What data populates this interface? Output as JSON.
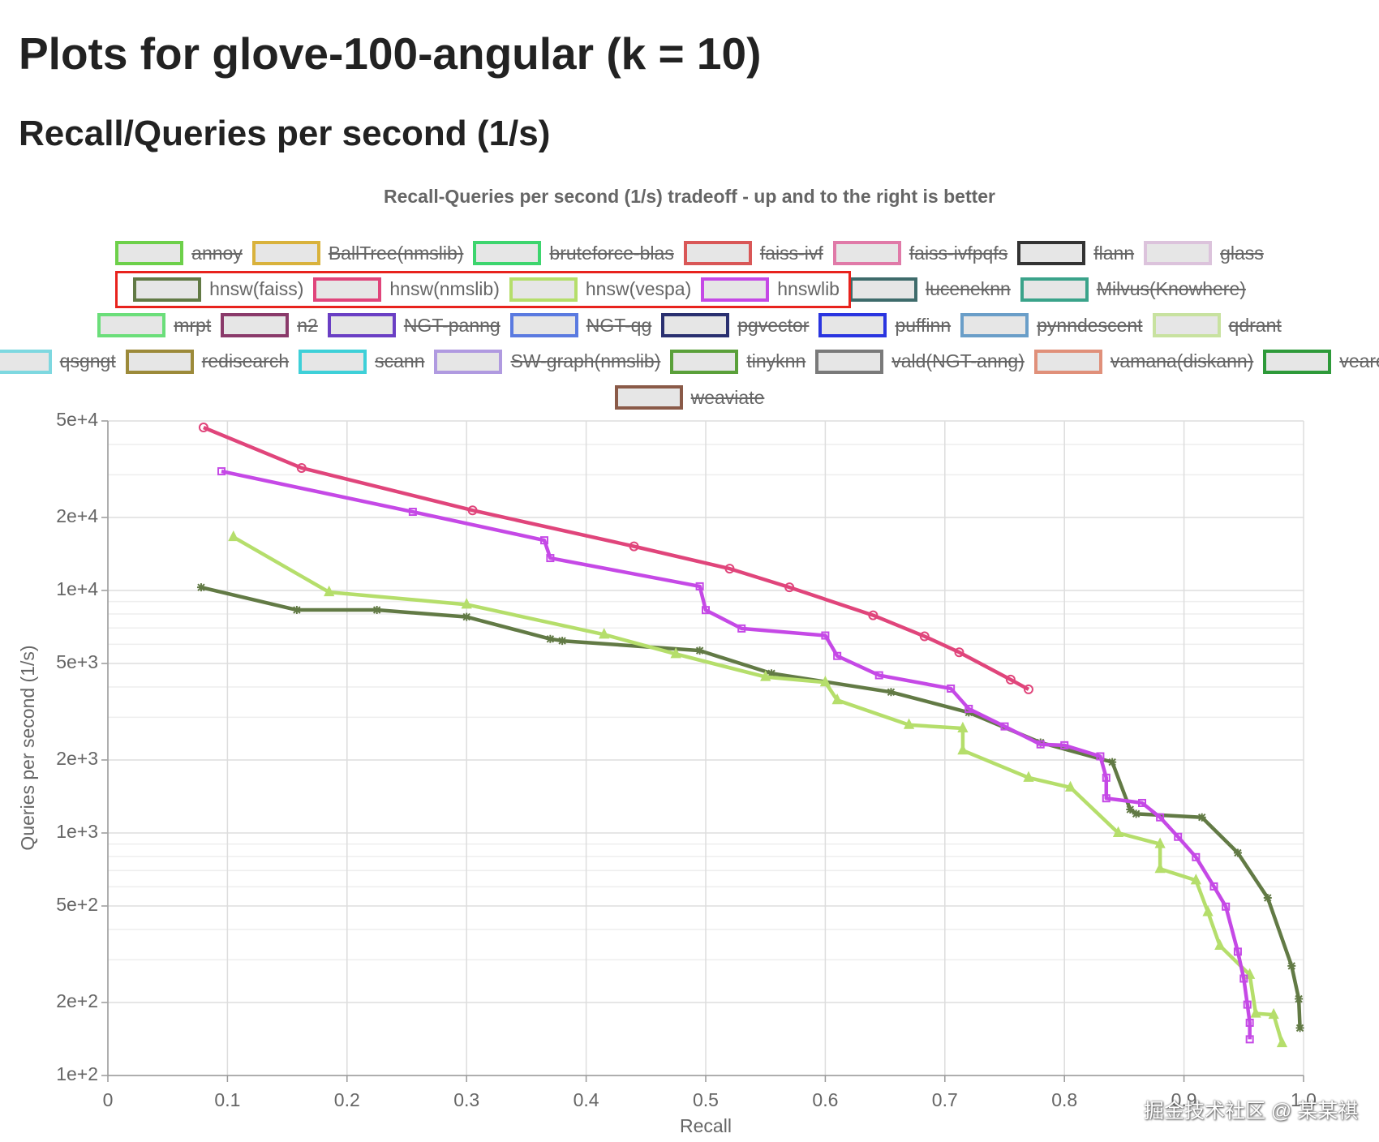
{
  "header": {
    "title": "Plots for glove-100-angular (k = 10)",
    "subtitle": "Recall/Queries per second (1/s)"
  },
  "watermark": "掘金技术社区 @ 某某祺",
  "chart_data": {
    "type": "line",
    "title": "Recall-Queries per second (1/s) tradeoff - up and to the right is better",
    "x_label": "Recall",
    "y_label": "Queries per second (1/s)",
    "xlim": [
      0,
      1
    ],
    "xticks": [
      0,
      0.1,
      0.2,
      0.3,
      0.4,
      0.5,
      0.6,
      0.7,
      0.8,
      0.9,
      {
        "value": 1,
        "label": "1.0"
      }
    ],
    "ylim": [
      100,
      50000
    ],
    "y_log": true,
    "grid": true,
    "yticks": [
      {
        "value": 100,
        "label": "1e+2"
      },
      {
        "value": 200,
        "label": "2e+2"
      },
      {
        "value": 500,
        "label": "5e+2"
      },
      {
        "value": 1000,
        "label": "1e+3"
      },
      {
        "value": 2000,
        "label": "2e+3"
      },
      {
        "value": 5000,
        "label": "5e+3"
      },
      {
        "value": 10000,
        "label": "1e+4"
      },
      {
        "value": 20000,
        "label": "2e+4"
      },
      {
        "value": 50000,
        "label": "5e+4"
      }
    ],
    "minor_yticks": [
      300,
      400,
      600,
      700,
      800,
      900,
      3000,
      4000,
      6000,
      7000,
      8000,
      9000,
      30000,
      40000
    ],
    "series": [
      {
        "name": "annoy",
        "color": "#6dd04a",
        "hidden": true
      },
      {
        "name": "BallTree(nmslib)",
        "color": "#d9b23c",
        "hidden": true
      },
      {
        "name": "bruteforce-blas",
        "color": "#3dd56e",
        "hidden": true
      },
      {
        "name": "faiss-ivf",
        "color": "#d95757",
        "hidden": true
      },
      {
        "name": "faiss-ivfpqfs",
        "color": "#e07aa8",
        "hidden": true
      },
      {
        "name": "flann",
        "color": "#333333",
        "hidden": true
      },
      {
        "name": "glass",
        "color": "#dcc3dc",
        "hidden": true
      },
      {
        "name": "hnsw(faiss)",
        "color": "#627a45",
        "marker": "star",
        "x": [
          0.078,
          0.158,
          0.225,
          0.3,
          0.37,
          0.38,
          0.495,
          0.555,
          0.655,
          0.72,
          0.78,
          0.84,
          0.855,
          0.86,
          0.915,
          0.945,
          0.97,
          0.99,
          0.996,
          0.997
        ],
        "values": [
          10300,
          8310,
          8310,
          7780,
          6310,
          6200,
          5650,
          4550,
          3810,
          3140,
          2360,
          1960,
          1250,
          1200,
          1160,
          828,
          540,
          283,
          207,
          157
        ]
      },
      {
        "name": "hnsw(nmslib)",
        "color": "#e0457b",
        "marker": "circle",
        "x": [
          0.08,
          0.162,
          0.305,
          0.44,
          0.52,
          0.57,
          0.64,
          0.683,
          0.712,
          0.755,
          0.77
        ],
        "values": [
          47000,
          32000,
          21400,
          15200,
          12300,
          10300,
          7900,
          6470,
          5560,
          4290,
          3910
        ]
      },
      {
        "name": "hnsw(vespa)",
        "color": "#b5de6b",
        "marker": "triangle",
        "x": [
          0.105,
          0.185,
          0.3,
          0.415,
          0.475,
          0.55,
          0.6,
          0.61,
          0.67,
          0.715,
          0.715,
          0.77,
          0.805,
          0.845,
          0.88,
          0.88,
          0.91,
          0.92,
          0.93,
          0.955,
          0.96,
          0.975,
          0.982
        ],
        "values": [
          16600,
          9840,
          8750,
          6580,
          5470,
          4400,
          4180,
          3530,
          2790,
          2700,
          2190,
          1690,
          1540,
          1000,
          900,
          711,
          638,
          472,
          343,
          260,
          180,
          178,
          136
        ]
      },
      {
        "name": "hnswlib",
        "color": "#c549e6",
        "marker": "square",
        "x": [
          0.095,
          0.255,
          0.365,
          0.37,
          0.495,
          0.5,
          0.53,
          0.6,
          0.61,
          0.645,
          0.705,
          0.72,
          0.75,
          0.78,
          0.8,
          0.83,
          0.835,
          0.835,
          0.865,
          0.88,
          0.895,
          0.91,
          0.925,
          0.935,
          0.945,
          0.95,
          0.953,
          0.955,
          0.955
        ],
        "values": [
          31000,
          21100,
          16100,
          13600,
          10400,
          8300,
          6970,
          6520,
          5370,
          4470,
          3940,
          3250,
          2750,
          2320,
          2300,
          2070,
          1690,
          1390,
          1330,
          1160,
          964,
          795,
          602,
          497,
          324,
          251,
          196,
          165,
          141
        ]
      },
      {
        "name": "luceneknn",
        "color": "#3e6b6b",
        "hidden": true
      },
      {
        "name": "Milvus(Knowhere)",
        "color": "#3aa38a",
        "hidden": true
      },
      {
        "name": "mrpt",
        "color": "#6bde7a",
        "hidden": true
      },
      {
        "name": "n2",
        "color": "#8a3a6a",
        "hidden": true
      },
      {
        "name": "NGT-panng",
        "color": "#6a3fc4",
        "hidden": true
      },
      {
        "name": "NGT-qg",
        "color": "#5a7ae0",
        "hidden": true
      },
      {
        "name": "pgvector",
        "color": "#2a3070",
        "hidden": true
      },
      {
        "name": "puffinn",
        "color": "#2a35e0",
        "hidden": true
      },
      {
        "name": "pynndescent",
        "color": "#6a9ec8",
        "hidden": true
      },
      {
        "name": "qdrant",
        "color": "#c8e2a0",
        "hidden": true
      },
      {
        "name": "qsgngt",
        "color": "#7ed8e0",
        "hidden": true
      },
      {
        "name": "redisearch",
        "color": "#9c8a3a",
        "hidden": true
      },
      {
        "name": "scann",
        "color": "#3ed0d8",
        "hidden": true
      },
      {
        "name": "SW-graph(nmslib)",
        "color": "#b09ae0",
        "hidden": true
      },
      {
        "name": "tinyknn",
        "color": "#5aa03a",
        "hidden": true
      },
      {
        "name": "vald(NGT-anng)",
        "color": "#7a7a7a",
        "hidden": true
      },
      {
        "name": "vamana(diskann)",
        "color": "#e0907a",
        "hidden": true
      },
      {
        "name": "vearch",
        "color": "#2e9a3a",
        "hidden": true
      },
      {
        "name": "weaviate",
        "color": "#8a5a48",
        "hidden": true
      }
    ]
  }
}
